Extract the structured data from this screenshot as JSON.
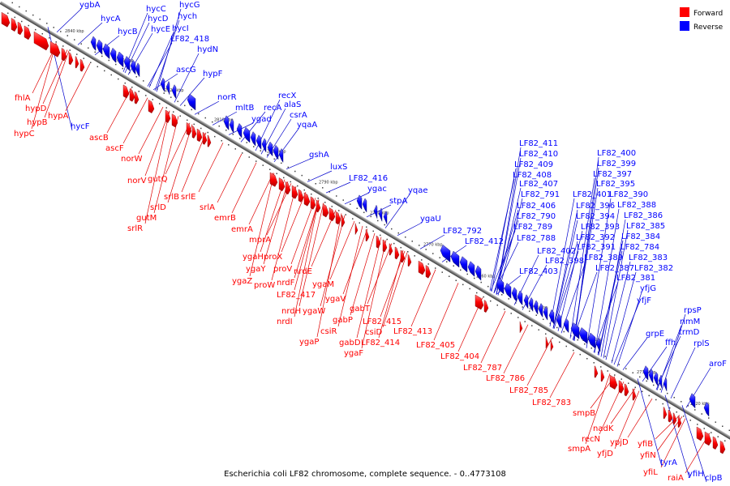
{
  "caption": "Escherichia coli LF82 chromosome, complete sequence. - 0..4773108",
  "legend": [
    {
      "label": "Forward",
      "color": "#ff0000"
    },
    {
      "label": "Reverse",
      "color": "#0000ff"
    }
  ],
  "colors": {
    "forward": "#ff0000",
    "reverse": "#0000ff",
    "forward_line": "#e00000",
    "reverse_line": "#0000cc",
    "axis": "#777777"
  },
  "kbp_ticks": [
    "2840 kbp",
    "2830 kbp",
    "2820 kbp",
    "2810 kbp",
    "2800 kbp",
    "2790 kbp",
    "2780 kbp",
    "2770 kbp",
    "2760 kbp",
    "2750 kbp",
    "2740 kbp",
    "2730 kbp",
    "2720 kbp"
  ],
  "reverse_labels": [
    "ygbA",
    "hycA",
    "hycB",
    "hycC",
    "hycD",
    "hycE",
    "hycG",
    "hych",
    "hycI",
    "LF82_418",
    "hydN",
    "ascG",
    "hypF",
    "hycF",
    "norR",
    "mltB",
    "ygad",
    "recA",
    "recX",
    "alaS",
    "csrA",
    "yqaA",
    "gshA",
    "luxS",
    "LF82_416",
    "ygac",
    "yqae",
    "stpA",
    "ygaU",
    "LF82_792",
    "LF82_412",
    "LF82_411",
    "LF82_410",
    "LF82_409",
    "LF82_408",
    "LF82_407",
    "LF82_791",
    "LF82_406",
    "LF82_790",
    "LF82_789",
    "LF82_788",
    "LF82_403",
    "LF82_402",
    "LF82_398",
    "LF82_400",
    "LF82_399",
    "LF82_397",
    "LF82_395",
    "LF82_401",
    "LF82_390",
    "LF82_396",
    "LF82_388",
    "LF82_394",
    "LF82_386",
    "LF82_393",
    "LF82_385",
    "LF82_392",
    "LF82_384",
    "LF82_391",
    "LF82_784",
    "LF82_389",
    "LF82_383",
    "LF82_387",
    "LF82_382",
    "LF82_381",
    "yfjG",
    "yfjF",
    "rpsP",
    "rimM",
    "grpE",
    "trmD",
    "ffh",
    "rplS",
    "aroF",
    "tyrA",
    "yfiH",
    "clpB"
  ],
  "forward_labels": [
    "fhlA",
    "hypD",
    "hypA",
    "hypB",
    "hypC",
    "ascB",
    "ascF",
    "norW",
    "norV",
    "gutQ",
    "srlB",
    "srlD",
    "srlE",
    "gutM",
    "srlR",
    "srlA",
    "emrB",
    "emrA",
    "mprA",
    "ygaH",
    "proX",
    "ygaY",
    "proV",
    "ygaZ",
    "proW",
    "nrdE",
    "nrdF",
    "LF82_417",
    "ygaM",
    "nrdH",
    "ygaW",
    "nrdI",
    "ygaV",
    "gabT",
    "csiR",
    "gabP",
    "ygaP",
    "LF82_415",
    "csiD",
    "gabD",
    "LF82_414",
    "ygaF",
    "LF82_413",
    "LF82_405",
    "LF82_404",
    "LF82_787",
    "LF82_786",
    "LF82_785",
    "LF82_783",
    "smpB",
    "nadK",
    "recN",
    "smpA",
    "ypjD",
    "yfjD",
    "yfiB",
    "yfiN",
    "yfiL",
    "raiA"
  ]
}
